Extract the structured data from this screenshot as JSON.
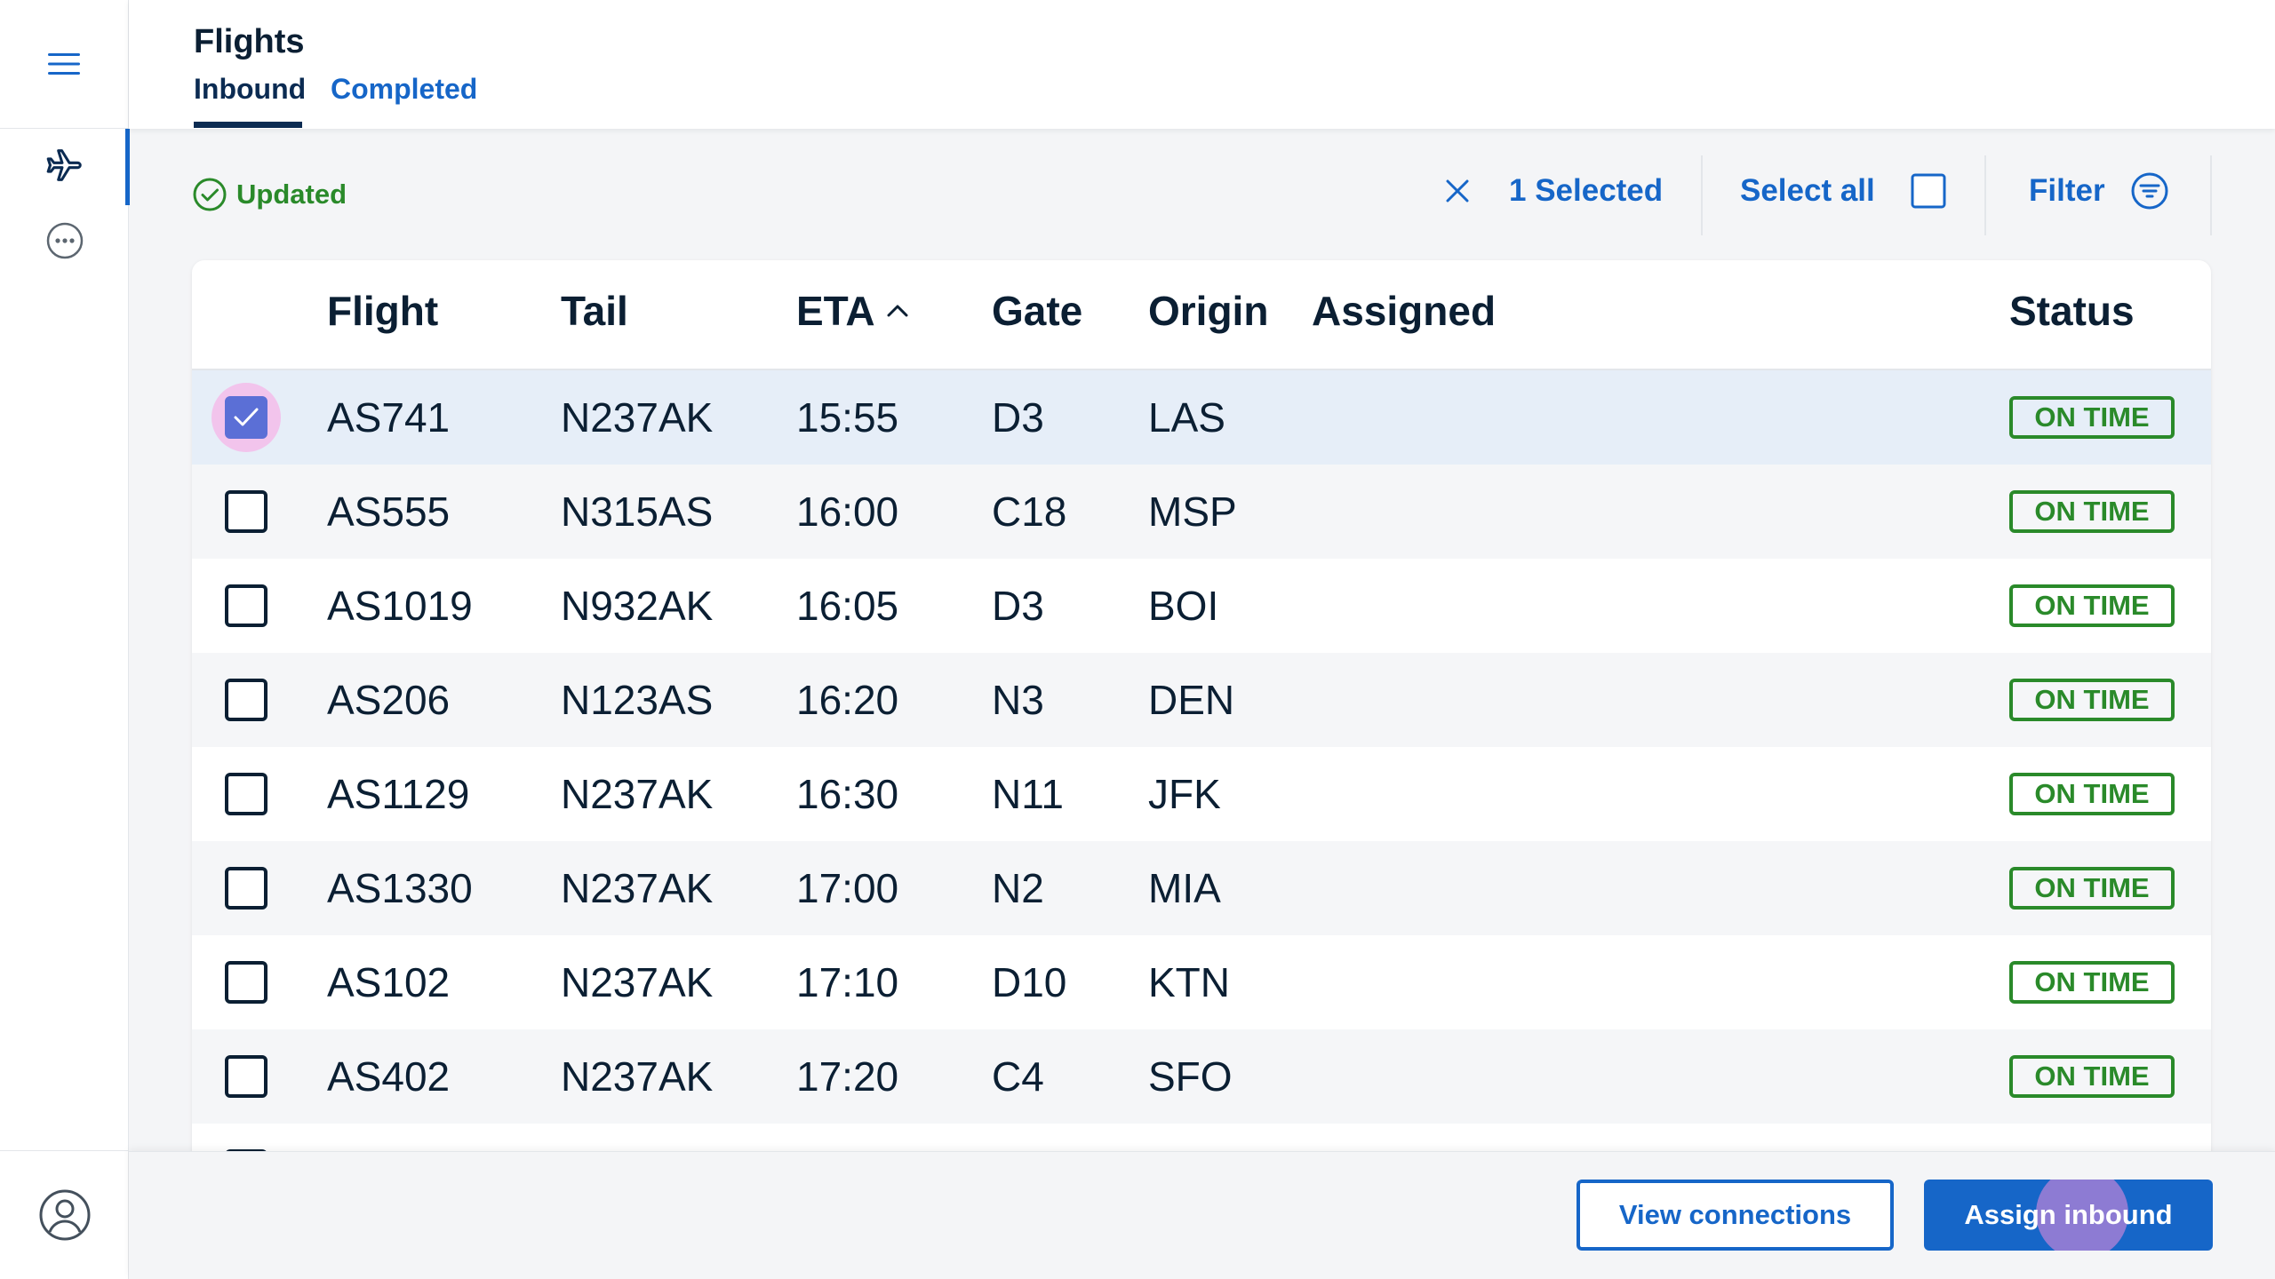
{
  "rail": {
    "icons": [
      "hamburger-menu-icon",
      "airplane-icon",
      "more-dots-icon",
      "user-profile-icon"
    ]
  },
  "header": {
    "title": "Flights",
    "tabs": [
      {
        "label": "Inbound",
        "active": true
      },
      {
        "label": "Completed",
        "active": false
      }
    ]
  },
  "toolbar": {
    "status_text": "Updated",
    "selected_text": "1 Selected",
    "select_all_label": "Select all",
    "filter_label": "Filter"
  },
  "table": {
    "columns": [
      "Flight",
      "Tail",
      "ETA",
      "Gate",
      "Origin",
      "Assigned",
      "Status"
    ],
    "sort_column": "ETA",
    "sort_direction": "ascending",
    "rows": [
      {
        "flight": "AS741",
        "tail": "N237AK",
        "eta": "15:55",
        "gate": "D3",
        "origin": "LAS",
        "assigned": "",
        "status": "ON TIME",
        "checked": true
      },
      {
        "flight": "AS555",
        "tail": "N315AS",
        "eta": "16:00",
        "gate": "C18",
        "origin": "MSP",
        "assigned": "",
        "status": "ON TIME",
        "checked": false
      },
      {
        "flight": "AS1019",
        "tail": "N932AK",
        "eta": "16:05",
        "gate": "D3",
        "origin": "BOI",
        "assigned": "",
        "status": "ON TIME",
        "checked": false
      },
      {
        "flight": "AS206",
        "tail": "N123AS",
        "eta": "16:20",
        "gate": "N3",
        "origin": "DEN",
        "assigned": "",
        "status": "ON TIME",
        "checked": false
      },
      {
        "flight": "AS1129",
        "tail": "N237AK",
        "eta": "16:30",
        "gate": "N11",
        "origin": "JFK",
        "assigned": "",
        "status": "ON TIME",
        "checked": false
      },
      {
        "flight": "AS1330",
        "tail": "N237AK",
        "eta": "17:00",
        "gate": "N2",
        "origin": "MIA",
        "assigned": "",
        "status": "ON TIME",
        "checked": false
      },
      {
        "flight": "AS102",
        "tail": "N237AK",
        "eta": "17:10",
        "gate": "D10",
        "origin": "KTN",
        "assigned": "",
        "status": "ON TIME",
        "checked": false
      },
      {
        "flight": "AS402",
        "tail": "N237AK",
        "eta": "17:20",
        "gate": "C4",
        "origin": "SFO",
        "assigned": "",
        "status": "ON TIME",
        "checked": false
      }
    ]
  },
  "footer": {
    "view_connections_label": "View connections",
    "assign_inbound_label": "Assign inbound"
  },
  "colors": {
    "accent": "#1666c8",
    "navy": "#0b2b52",
    "status_green": "#2a8a2a",
    "selected_row": "#e6eef8",
    "checkbox_checked": "#5b6fd6"
  }
}
